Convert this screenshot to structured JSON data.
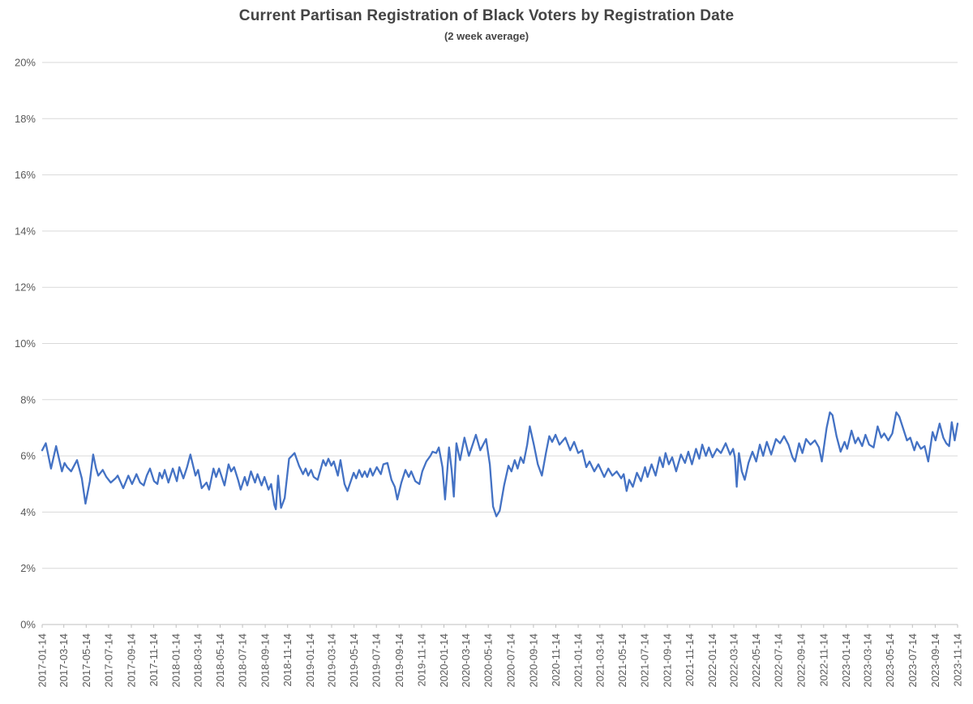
{
  "style": {
    "line_color": "#4472C4",
    "gridline_color": "#D9D9D9",
    "axis_line_color": "#BFBFBF",
    "tick_label_color": "#595959",
    "title_color": "#444444",
    "background": "#FFFFFF"
  },
  "chart_data": {
    "type": "line",
    "title": "Current Partisan Registration of Black Voters by Registration Date",
    "subtitle": "(2 week average)",
    "xlabel": "",
    "ylabel": "",
    "ylim": [
      0,
      20
    ],
    "y_tick_step": 2,
    "grid": "horizontal",
    "legend": "none",
    "y_tick_labels": [
      "0%",
      "2%",
      "4%",
      "6%",
      "8%",
      "10%",
      "12%",
      "14%",
      "16%",
      "18%",
      "20%"
    ],
    "x_tick_labels": [
      "2017-01-14",
      "2017-03-14",
      "2017-05-14",
      "2017-07-14",
      "2017-09-14",
      "2017-11-14",
      "2018-01-14",
      "2018-03-14",
      "2018-05-14",
      "2018-07-14",
      "2018-09-14",
      "2018-11-14",
      "2019-01-14",
      "2019-03-14",
      "2019-05-14",
      "2019-07-14",
      "2019-09-14",
      "2019-11-14",
      "2020-01-14",
      "2020-03-14",
      "2020-05-14",
      "2020-07-14",
      "2020-09-14",
      "2020-11-14",
      "2021-01-14",
      "2021-03-14",
      "2021-05-14",
      "2021-07-14",
      "2021-09-14",
      "2021-11-14",
      "2022-01-14",
      "2022-03-14",
      "2022-05-14",
      "2022-07-14",
      "2022-09-14",
      "2022-11-14",
      "2023-01-14",
      "2023-03-14",
      "2023-05-14",
      "2023-07-14",
      "2023-09-14",
      "2023-11-14"
    ],
    "series": [
      {
        "color": "#4472C4",
        "points": [
          [
            "2017-01-14",
            6.2
          ],
          [
            "2017-01-24",
            6.45
          ],
          [
            "2017-02-07",
            5.55
          ],
          [
            "2017-02-21",
            6.35
          ],
          [
            "2017-03-09",
            5.45
          ],
          [
            "2017-03-16",
            5.75
          ],
          [
            "2017-03-23",
            5.6
          ],
          [
            "2017-04-03",
            5.45
          ],
          [
            "2017-04-19",
            5.85
          ],
          [
            "2017-05-02",
            5.2
          ],
          [
            "2017-05-12",
            4.3
          ],
          [
            "2017-05-24",
            5.1
          ],
          [
            "2017-06-02",
            6.05
          ],
          [
            "2017-06-10",
            5.55
          ],
          [
            "2017-06-16",
            5.3
          ],
          [
            "2017-06-28",
            5.5
          ],
          [
            "2017-07-08",
            5.25
          ],
          [
            "2017-07-20",
            5.05
          ],
          [
            "2017-08-02",
            5.2
          ],
          [
            "2017-08-08",
            5.3
          ],
          [
            "2017-08-23",
            4.85
          ],
          [
            "2017-09-06",
            5.3
          ],
          [
            "2017-09-16",
            5.0
          ],
          [
            "2017-09-28",
            5.35
          ],
          [
            "2017-10-08",
            5.05
          ],
          [
            "2017-10-18",
            4.95
          ],
          [
            "2017-10-26",
            5.3
          ],
          [
            "2017-11-04",
            5.55
          ],
          [
            "2017-11-15",
            5.1
          ],
          [
            "2017-11-24",
            5.0
          ],
          [
            "2017-11-30",
            5.4
          ],
          [
            "2017-12-07",
            5.2
          ],
          [
            "2017-12-14",
            5.5
          ],
          [
            "2017-12-24",
            5.05
          ],
          [
            "2018-01-05",
            5.55
          ],
          [
            "2018-01-16",
            5.1
          ],
          [
            "2018-01-23",
            5.6
          ],
          [
            "2018-02-03",
            5.2
          ],
          [
            "2018-02-13",
            5.6
          ],
          [
            "2018-02-22",
            6.05
          ],
          [
            "2018-03-08",
            5.3
          ],
          [
            "2018-03-15",
            5.5
          ],
          [
            "2018-03-25",
            4.85
          ],
          [
            "2018-04-07",
            5.05
          ],
          [
            "2018-04-14",
            4.8
          ],
          [
            "2018-04-26",
            5.55
          ],
          [
            "2018-05-03",
            5.25
          ],
          [
            "2018-05-11",
            5.55
          ],
          [
            "2018-05-26",
            4.95
          ],
          [
            "2018-06-06",
            5.7
          ],
          [
            "2018-06-13",
            5.45
          ],
          [
            "2018-06-21",
            5.6
          ],
          [
            "2018-07-02",
            5.15
          ],
          [
            "2018-07-09",
            4.8
          ],
          [
            "2018-07-20",
            5.25
          ],
          [
            "2018-07-27",
            4.95
          ],
          [
            "2018-08-06",
            5.45
          ],
          [
            "2018-08-17",
            5.05
          ],
          [
            "2018-08-24",
            5.35
          ],
          [
            "2018-09-04",
            4.95
          ],
          [
            "2018-09-12",
            5.25
          ],
          [
            "2018-09-23",
            4.8
          ],
          [
            "2018-09-30",
            5.0
          ],
          [
            "2018-10-09",
            4.25
          ],
          [
            "2018-10-13",
            4.1
          ],
          [
            "2018-10-19",
            5.3
          ],
          [
            "2018-10-27",
            4.15
          ],
          [
            "2018-11-06",
            4.5
          ],
          [
            "2018-11-18",
            5.9
          ],
          [
            "2018-12-03",
            6.1
          ],
          [
            "2018-12-15",
            5.65
          ],
          [
            "2018-12-26",
            5.35
          ],
          [
            "2019-01-02",
            5.55
          ],
          [
            "2019-01-09",
            5.3
          ],
          [
            "2019-01-17",
            5.5
          ],
          [
            "2019-01-24",
            5.25
          ],
          [
            "2019-02-04",
            5.15
          ],
          [
            "2019-02-19",
            5.85
          ],
          [
            "2019-02-26",
            5.65
          ],
          [
            "2019-03-05",
            5.9
          ],
          [
            "2019-03-13",
            5.65
          ],
          [
            "2019-03-20",
            5.8
          ],
          [
            "2019-03-31",
            5.3
          ],
          [
            "2019-04-07",
            5.85
          ],
          [
            "2019-04-18",
            5.0
          ],
          [
            "2019-04-26",
            4.75
          ],
          [
            "2019-05-13",
            5.4
          ],
          [
            "2019-05-20",
            5.2
          ],
          [
            "2019-05-28",
            5.5
          ],
          [
            "2019-06-05",
            5.25
          ],
          [
            "2019-06-12",
            5.45
          ],
          [
            "2019-06-19",
            5.25
          ],
          [
            "2019-06-27",
            5.55
          ],
          [
            "2019-07-04",
            5.3
          ],
          [
            "2019-07-15",
            5.6
          ],
          [
            "2019-07-26",
            5.35
          ],
          [
            "2019-08-02",
            5.7
          ],
          [
            "2019-08-13",
            5.75
          ],
          [
            "2019-08-24",
            5.15
          ],
          [
            "2019-09-02",
            4.9
          ],
          [
            "2019-09-09",
            4.45
          ],
          [
            "2019-09-20",
            5.05
          ],
          [
            "2019-10-01",
            5.5
          ],
          [
            "2019-10-10",
            5.25
          ],
          [
            "2019-10-17",
            5.45
          ],
          [
            "2019-10-28",
            5.1
          ],
          [
            "2019-11-08",
            5.0
          ],
          [
            "2019-11-16",
            5.45
          ],
          [
            "2019-11-27",
            5.8
          ],
          [
            "2019-12-08",
            6.0
          ],
          [
            "2019-12-14",
            6.15
          ],
          [
            "2019-12-24",
            6.1
          ],
          [
            "2019-12-31",
            6.3
          ],
          [
            "2020-01-10",
            5.6
          ],
          [
            "2020-01-17",
            4.45
          ],
          [
            "2020-01-28",
            6.3
          ],
          [
            "2020-02-04",
            5.5
          ],
          [
            "2020-02-10",
            4.55
          ],
          [
            "2020-02-17",
            6.45
          ],
          [
            "2020-02-27",
            5.85
          ],
          [
            "2020-03-10",
            6.65
          ],
          [
            "2020-03-22",
            6.0
          ],
          [
            "2020-04-10",
            6.75
          ],
          [
            "2020-04-22",
            6.2
          ],
          [
            "2020-05-08",
            6.6
          ],
          [
            "2020-05-18",
            5.7
          ],
          [
            "2020-05-27",
            4.2
          ],
          [
            "2020-06-05",
            3.85
          ],
          [
            "2020-06-14",
            4.05
          ],
          [
            "2020-06-26",
            4.95
          ],
          [
            "2020-07-08",
            5.65
          ],
          [
            "2020-07-16",
            5.45
          ],
          [
            "2020-07-25",
            5.85
          ],
          [
            "2020-08-02",
            5.55
          ],
          [
            "2020-08-10",
            5.95
          ],
          [
            "2020-08-18",
            5.75
          ],
          [
            "2020-08-28",
            6.4
          ],
          [
            "2020-09-04",
            7.05
          ],
          [
            "2020-09-15",
            6.4
          ],
          [
            "2020-09-26",
            5.7
          ],
          [
            "2020-10-07",
            5.3
          ],
          [
            "2020-10-18",
            6.1
          ],
          [
            "2020-10-27",
            6.7
          ],
          [
            "2020-11-04",
            6.5
          ],
          [
            "2020-11-13",
            6.75
          ],
          [
            "2020-11-24",
            6.4
          ],
          [
            "2020-12-10",
            6.65
          ],
          [
            "2020-12-23",
            6.2
          ],
          [
            "2021-01-03",
            6.5
          ],
          [
            "2021-01-14",
            6.1
          ],
          [
            "2021-01-25",
            6.2
          ],
          [
            "2021-02-05",
            5.6
          ],
          [
            "2021-02-14",
            5.8
          ],
          [
            "2021-02-27",
            5.45
          ],
          [
            "2021-03-10",
            5.7
          ],
          [
            "2021-03-26",
            5.25
          ],
          [
            "2021-04-06",
            5.55
          ],
          [
            "2021-04-17",
            5.3
          ],
          [
            "2021-04-29",
            5.45
          ],
          [
            "2021-05-11",
            5.2
          ],
          [
            "2021-05-18",
            5.35
          ],
          [
            "2021-05-26",
            4.75
          ],
          [
            "2021-06-02",
            5.15
          ],
          [
            "2021-06-12",
            4.9
          ],
          [
            "2021-06-23",
            5.4
          ],
          [
            "2021-07-04",
            5.1
          ],
          [
            "2021-07-15",
            5.6
          ],
          [
            "2021-07-22",
            5.25
          ],
          [
            "2021-08-02",
            5.7
          ],
          [
            "2021-08-13",
            5.3
          ],
          [
            "2021-08-24",
            5.95
          ],
          [
            "2021-09-02",
            5.6
          ],
          [
            "2021-09-09",
            6.1
          ],
          [
            "2021-09-18",
            5.7
          ],
          [
            "2021-09-27",
            5.95
          ],
          [
            "2021-10-08",
            5.45
          ],
          [
            "2021-10-21",
            6.05
          ],
          [
            "2021-11-01",
            5.75
          ],
          [
            "2021-11-10",
            6.15
          ],
          [
            "2021-11-20",
            5.7
          ],
          [
            "2021-12-01",
            6.25
          ],
          [
            "2021-12-10",
            5.9
          ],
          [
            "2021-12-18",
            6.4
          ],
          [
            "2021-12-28",
            6.0
          ],
          [
            "2022-01-05",
            6.3
          ],
          [
            "2022-01-15",
            5.95
          ],
          [
            "2022-01-27",
            6.25
          ],
          [
            "2022-02-07",
            6.1
          ],
          [
            "2022-02-20",
            6.45
          ],
          [
            "2022-03-04",
            6.05
          ],
          [
            "2022-03-12",
            6.25
          ],
          [
            "2022-03-17",
            5.95
          ],
          [
            "2022-03-22",
            4.9
          ],
          [
            "2022-03-28",
            6.1
          ],
          [
            "2022-04-05",
            5.45
          ],
          [
            "2022-04-13",
            5.15
          ],
          [
            "2022-04-23",
            5.75
          ],
          [
            "2022-05-04",
            6.15
          ],
          [
            "2022-05-14",
            5.8
          ],
          [
            "2022-05-24",
            6.4
          ],
          [
            "2022-06-02",
            6.0
          ],
          [
            "2022-06-12",
            6.5
          ],
          [
            "2022-06-24",
            6.05
          ],
          [
            "2022-07-07",
            6.6
          ],
          [
            "2022-07-18",
            6.45
          ],
          [
            "2022-07-29",
            6.7
          ],
          [
            "2022-08-10",
            6.4
          ],
          [
            "2022-08-21",
            5.95
          ],
          [
            "2022-08-28",
            5.8
          ],
          [
            "2022-09-08",
            6.45
          ],
          [
            "2022-09-17",
            6.1
          ],
          [
            "2022-09-27",
            6.6
          ],
          [
            "2022-10-09",
            6.4
          ],
          [
            "2022-10-21",
            6.55
          ],
          [
            "2022-11-01",
            6.3
          ],
          [
            "2022-11-09",
            5.8
          ],
          [
            "2022-11-22",
            7.0
          ],
          [
            "2022-12-01",
            7.55
          ],
          [
            "2022-12-08",
            7.45
          ],
          [
            "2022-12-19",
            6.7
          ],
          [
            "2022-12-30",
            6.15
          ],
          [
            "2023-01-10",
            6.5
          ],
          [
            "2023-01-17",
            6.25
          ],
          [
            "2023-01-29",
            6.9
          ],
          [
            "2023-02-08",
            6.45
          ],
          [
            "2023-02-16",
            6.65
          ],
          [
            "2023-02-27",
            6.35
          ],
          [
            "2023-03-08",
            6.75
          ],
          [
            "2023-03-18",
            6.4
          ],
          [
            "2023-03-30",
            6.3
          ],
          [
            "2023-04-10",
            7.05
          ],
          [
            "2023-04-20",
            6.65
          ],
          [
            "2023-04-28",
            6.8
          ],
          [
            "2023-05-09",
            6.55
          ],
          [
            "2023-05-20",
            6.8
          ],
          [
            "2023-05-31",
            7.55
          ],
          [
            "2023-06-08",
            7.4
          ],
          [
            "2023-06-18",
            7.0
          ],
          [
            "2023-06-29",
            6.55
          ],
          [
            "2023-07-08",
            6.65
          ],
          [
            "2023-07-19",
            6.2
          ],
          [
            "2023-07-26",
            6.5
          ],
          [
            "2023-08-06",
            6.25
          ],
          [
            "2023-08-16",
            6.35
          ],
          [
            "2023-08-26",
            5.8
          ],
          [
            "2023-09-07",
            6.85
          ],
          [
            "2023-09-15",
            6.55
          ],
          [
            "2023-09-26",
            7.15
          ],
          [
            "2023-10-06",
            6.65
          ],
          [
            "2023-10-14",
            6.45
          ],
          [
            "2023-10-22",
            6.35
          ],
          [
            "2023-10-29",
            7.2
          ],
          [
            "2023-11-06",
            6.55
          ],
          [
            "2023-11-14",
            7.15
          ]
        ]
      }
    ]
  }
}
